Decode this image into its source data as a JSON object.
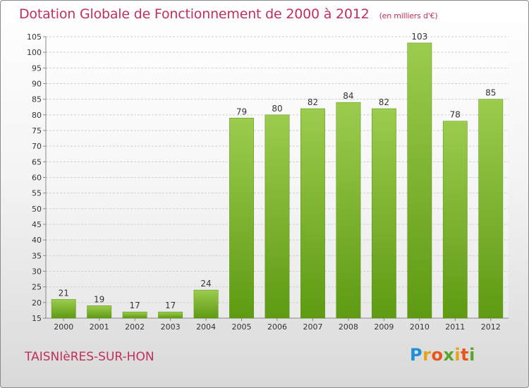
{
  "title": "Dotation Globale de Fonctionnement de 2000 à 2012",
  "unit": "(en milliers d'€)",
  "commune": "TAISNIèRES-SUR-HON",
  "brand": {
    "letters": [
      "P",
      "r",
      "o",
      "x",
      "i",
      "t",
      "i"
    ],
    "text": "Proxiti"
  },
  "colors": {
    "title": "#c0305a",
    "bar_top": "#9ccc4e",
    "bar_bottom": "#5e9a12",
    "grid": "#d0d0d0"
  },
  "chart_data": {
    "type": "bar",
    "title": "Dotation Globale de Fonctionnement de 2000 à 2012",
    "xlabel": "",
    "ylabel": "",
    "categories": [
      "2000",
      "2001",
      "2002",
      "2003",
      "2004",
      "2005",
      "2006",
      "2007",
      "2008",
      "2009",
      "2010",
      "2011",
      "2012"
    ],
    "values": [
      21,
      19,
      17,
      17,
      24,
      79,
      80,
      82,
      84,
      82,
      103,
      78,
      85
    ],
    "ylim": [
      15,
      105
    ],
    "yticks": [
      15,
      20,
      25,
      30,
      35,
      40,
      45,
      50,
      55,
      60,
      65,
      70,
      75,
      80,
      85,
      90,
      95,
      100,
      105
    ],
    "grid": true,
    "legend": "none"
  }
}
